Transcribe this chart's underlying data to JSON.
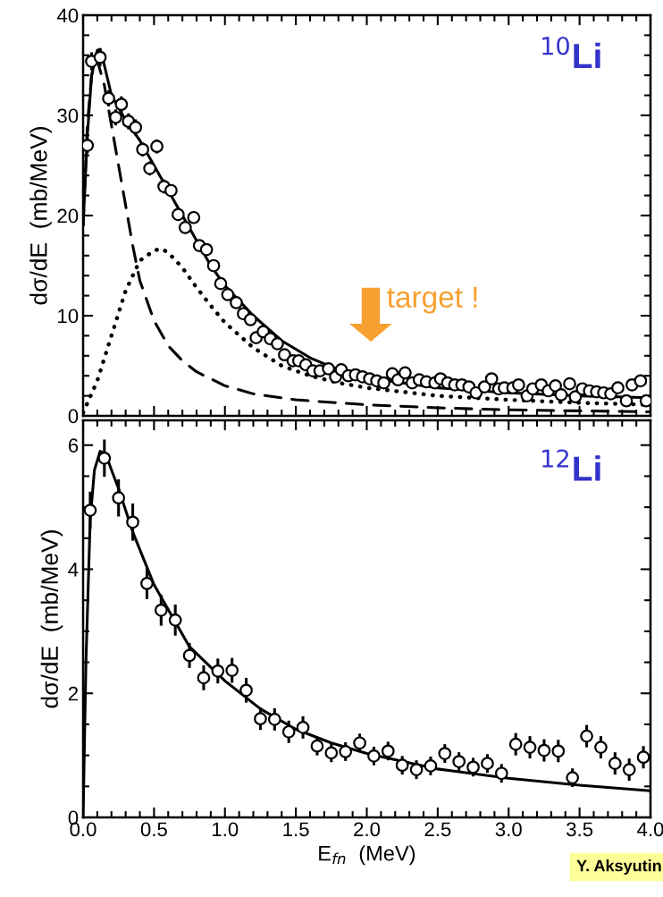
{
  "chart_data": [
    {
      "type": "scatter",
      "ylabel": "dσ/dE  (mb/MeV)",
      "xlim": [
        0,
        4
      ],
      "xticks": [
        0,
        0.5,
        1,
        1.5,
        2,
        2.5,
        3,
        3.5,
        4
      ],
      "ylim": [
        0,
        40
      ],
      "yticks": [
        0,
        10,
        20,
        30,
        40
      ],
      "tick_labels": "y",
      "grid": false,
      "legend": false,
      "annotations": [
        "$^{10}$Li",
        "target !"
      ],
      "series": [
        {
          "type": "line",
          "color": "#000000",
          "line_style": "dashed",
          "marker": "none",
          "x": [
            0,
            0.03,
            0.06,
            0.1,
            0.15,
            0.2,
            0.25,
            0.3,
            0.35,
            0.4,
            0.5,
            0.6,
            0.7,
            0.8,
            1.0,
            1.2,
            1.5,
            2.0,
            2.5,
            3.0,
            3.5,
            4.0
          ],
          "values": [
            19,
            29,
            34,
            35.5,
            33,
            29,
            25,
            21,
            17,
            13.5,
            9.5,
            7,
            5.5,
            4.4,
            3.0,
            2.2,
            1.6,
            1.1,
            0.8,
            0.6,
            0.5,
            0.4
          ]
        },
        {
          "type": "line",
          "color": "#000000",
          "line_style": "dotted",
          "marker": "none",
          "x": [
            0,
            0.1,
            0.2,
            0.3,
            0.4,
            0.5,
            0.55,
            0.6,
            0.7,
            0.8,
            0.9,
            1.0,
            1.2,
            1.4,
            1.6,
            1.8,
            2.0,
            2.5,
            3.0,
            3.5,
            4.0
          ],
          "values": [
            0.3,
            3.5,
            8,
            12.5,
            15.5,
            16.5,
            16.7,
            16.3,
            14.8,
            12.8,
            11,
            9.3,
            6.8,
            5.0,
            4.0,
            3.3,
            2.8,
            2.0,
            1.6,
            1.3,
            1.1
          ]
        },
        {
          "type": "line",
          "color": "#000000",
          "line_style": "solid",
          "marker": "none",
          "x": [
            0,
            0.03,
            0.06,
            0.1,
            0.12,
            0.15,
            0.2,
            0.3,
            0.4,
            0.5,
            0.6,
            0.7,
            0.8,
            0.9,
            1.0,
            1.2,
            1.4,
            1.6,
            1.8,
            2.0,
            2.5,
            3.0,
            3.5,
            4.0
          ],
          "values": [
            19,
            28,
            34,
            36.5,
            36.6,
            35,
            32,
            29.5,
            27.5,
            25,
            22.5,
            20,
            17.5,
            15,
            13,
            10,
            7.5,
            5.8,
            4.6,
            3.8,
            2.8,
            2.3,
            2.0,
            1.8
          ]
        },
        {
          "color": "#000000",
          "marker": "circle",
          "x": [
            0.03,
            0.06,
            0.12,
            0.18,
            0.23,
            0.27,
            0.32,
            0.37,
            0.42,
            0.47,
            0.52,
            0.57,
            0.62,
            0.67,
            0.72,
            0.78,
            0.82,
            0.87,
            0.92,
            0.97,
            1.02,
            1.08,
            1.13,
            1.18,
            1.22,
            1.27,
            1.32,
            1.37,
            1.42,
            1.48,
            1.52,
            1.57,
            1.62,
            1.67,
            1.73,
            1.78,
            1.82,
            1.87,
            1.92,
            1.97,
            2.02,
            2.07,
            2.12,
            2.18,
            2.22,
            2.27,
            2.32,
            2.37,
            2.42,
            2.48,
            2.52,
            2.57,
            2.62,
            2.67,
            2.72,
            2.77,
            2.83,
            2.88,
            2.93,
            2.97,
            3.03,
            3.07,
            3.13,
            3.17,
            3.23,
            3.28,
            3.33,
            3.37,
            3.43,
            3.47,
            3.52,
            3.57,
            3.62,
            3.67,
            3.72,
            3.77,
            3.83,
            3.87,
            3.93,
            3.97
          ],
          "values": [
            27.0,
            35.4,
            35.8,
            31.7,
            29.8,
            31.1,
            29.4,
            28.8,
            26.6,
            24.7,
            26.9,
            22.9,
            22.5,
            20.1,
            18.8,
            19.8,
            17.0,
            16.6,
            15.0,
            13.2,
            12.1,
            11.3,
            10.2,
            9.6,
            7.8,
            8.4,
            7.7,
            7.2,
            6.1,
            5.5,
            5.5,
            5.1,
            4.5,
            4.5,
            4.7,
            3.9,
            4.6,
            4.0,
            4.1,
            3.9,
            3.7,
            3.5,
            3.3,
            4.2,
            3.6,
            4.3,
            3.3,
            3.6,
            3.4,
            3.3,
            3.7,
            3.3,
            3.1,
            3.1,
            2.9,
            2.3,
            2.9,
            3.7,
            2.7,
            2.8,
            2.8,
            3.1,
            2.0,
            2.7,
            3.1,
            2.5,
            3.0,
            2.1,
            3.2,
            1.9,
            2.7,
            2.5,
            2.4,
            2.3,
            2.2,
            2.8,
            1.5,
            3.1,
            3.5,
            1.5
          ],
          "errors": [
            0.8,
            0.9,
            0.9,
            0.8,
            0.8,
            0.8,
            0.8,
            0.8,
            0.7,
            0.7,
            0.7,
            0.7,
            0.6,
            0.6,
            0.6,
            0.6,
            0.5,
            0.5,
            0.5,
            0.5,
            0.4,
            0.4,
            0.4,
            0.4,
            0.4,
            0.4,
            0.4,
            0.4,
            0.3,
            0.3,
            0.3,
            0.3,
            0.3,
            0.3,
            0.3,
            0.3,
            0.3,
            0.3,
            0.3,
            0.3,
            0.3,
            0.3,
            0.3,
            0.3,
            0.3,
            0.3,
            0.3,
            0.3,
            0.3,
            0.3,
            0.3,
            0.3,
            0.3,
            0.3,
            0.3,
            0.3,
            0.3,
            0.3,
            0.3,
            0.3,
            0.3,
            0.3,
            0.3,
            0.3,
            0.3,
            0.3,
            0.3,
            0.3,
            0.3,
            0.3,
            0.3,
            0.3,
            0.3,
            0.3,
            0.3,
            0.3,
            0.3,
            0.3,
            0.3,
            0.3
          ]
        }
      ]
    },
    {
      "type": "scatter",
      "xlabel": "E$_{fn}$  (MeV)",
      "ylabel": "dσ/dE  (mb/MeV)",
      "xlim": [
        0,
        4
      ],
      "xticks": [
        {
          "value": 0,
          "label": "0.0"
        },
        0.5,
        {
          "value": 1,
          "label": "1.0"
        },
        1.5,
        {
          "value": 2,
          "label": "2.0"
        },
        2.5,
        {
          "value": 3,
          "label": "3.0"
        },
        3.5,
        {
          "value": 4,
          "label": "4.0"
        }
      ],
      "ylim": [
        0,
        6.4
      ],
      "yticks": [
        0,
        2,
        4,
        6
      ],
      "grid": false,
      "legend": false,
      "annotations": [
        "$^{12}$Li",
        "Y. Aksyutin"
      ],
      "series": [
        {
          "type": "line",
          "color": "#000000",
          "line_style": "solid",
          "marker": "none",
          "x": [
            0,
            0.02,
            0.05,
            0.08,
            0.12,
            0.16,
            0.2,
            0.25,
            0.35,
            0.5,
            0.75,
            1.0,
            1.25,
            1.5,
            1.75,
            2.0,
            2.5,
            3.0,
            3.5,
            4.0
          ],
          "values": [
            0,
            2.5,
            4.8,
            5.6,
            5.9,
            5.85,
            5.6,
            5.3,
            4.6,
            3.75,
            2.75,
            2.2,
            1.75,
            1.42,
            1.2,
            1.03,
            0.78,
            0.63,
            0.52,
            0.43
          ]
        },
        {
          "color": "#000000",
          "marker": "circle",
          "x": [
            0.05,
            0.15,
            0.25,
            0.35,
            0.45,
            0.55,
            0.65,
            0.75,
            0.85,
            0.95,
            1.05,
            1.15,
            1.25,
            1.35,
            1.45,
            1.55,
            1.65,
            1.75,
            1.85,
            1.95,
            2.05,
            2.15,
            2.25,
            2.35,
            2.45,
            2.55,
            2.65,
            2.75,
            2.85,
            2.95,
            3.05,
            3.15,
            3.25,
            3.35,
            3.45,
            3.55,
            3.65,
            3.75,
            3.85,
            3.95
          ],
          "values": [
            4.95,
            5.79,
            5.15,
            4.76,
            3.77,
            3.34,
            3.18,
            2.61,
            2.25,
            2.36,
            2.37,
            2.05,
            1.59,
            1.58,
            1.38,
            1.45,
            1.15,
            1.04,
            1.06,
            1.2,
            0.99,
            1.07,
            0.84,
            0.77,
            0.83,
            1.03,
            0.9,
            0.81,
            0.87,
            0.71,
            1.18,
            1.13,
            1.08,
            1.07,
            0.64,
            1.31,
            1.13,
            0.87,
            0.77,
            0.97
          ],
          "errors": [
            0.3,
            0.3,
            0.3,
            0.3,
            0.25,
            0.25,
            0.25,
            0.2,
            0.2,
            0.2,
            0.2,
            0.2,
            0.18,
            0.18,
            0.18,
            0.18,
            0.15,
            0.15,
            0.15,
            0.15,
            0.15,
            0.15,
            0.15,
            0.15,
            0.15,
            0.15,
            0.15,
            0.15,
            0.15,
            0.15,
            0.18,
            0.18,
            0.18,
            0.18,
            0.15,
            0.18,
            0.18,
            0.18,
            0.18,
            0.18
          ]
        }
      ]
    }
  ]
}
